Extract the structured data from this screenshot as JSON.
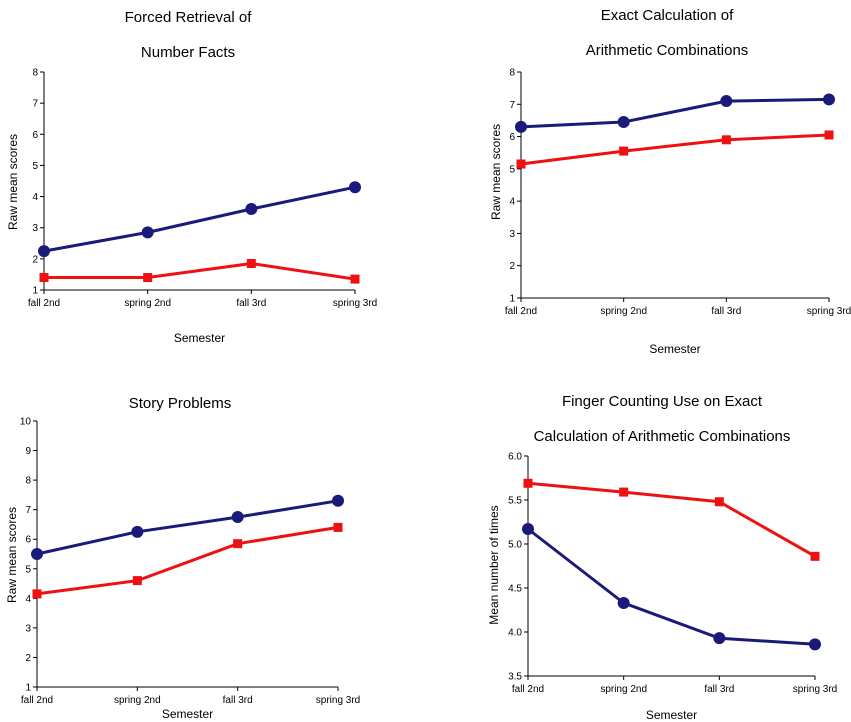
{
  "chart_data": [
    {
      "type": "line",
      "title_lines": [
        "Forced Retrieval of",
        "Number Facts"
      ],
      "xlabel": "Semester",
      "ylabel": "Raw mean scores",
      "categories": [
        "fall 2nd",
        "spring 2nd",
        "fall 3rd",
        "spring 3rd"
      ],
      "ylim": [
        1,
        8
      ],
      "yticks": [
        "1",
        "2",
        "3",
        "4",
        "5",
        "6",
        "7",
        "8"
      ],
      "grid": false,
      "series": [
        {
          "color": "#1a1a7a",
          "marker": "circle",
          "values": [
            2.25,
            2.85,
            3.6,
            4.3
          ]
        },
        {
          "color": "#ee1111",
          "marker": "square",
          "values": [
            1.4,
            1.4,
            1.85,
            1.35
          ]
        }
      ]
    },
    {
      "type": "line",
      "title_lines": [
        "Exact Calculation of",
        "Arithmetic Combinations"
      ],
      "xlabel": "Semester",
      "ylabel": "Raw mean scores",
      "categories": [
        "fall 2nd",
        "spring 2nd",
        "fall 3rd",
        "spring 3rd"
      ],
      "ylim": [
        1,
        8
      ],
      "yticks": [
        "1",
        "2",
        "3",
        "4",
        "5",
        "6",
        "7",
        "8"
      ],
      "grid": false,
      "series": [
        {
          "color": "#1a1a7a",
          "marker": "circle",
          "values": [
            6.3,
            6.45,
            7.1,
            7.15
          ]
        },
        {
          "color": "#ee1111",
          "marker": "square",
          "values": [
            5.15,
            5.55,
            5.9,
            6.05
          ]
        }
      ]
    },
    {
      "type": "line",
      "title_lines": [
        "Story Problems"
      ],
      "xlabel": "Semester",
      "ylabel": "Raw mean scores",
      "categories": [
        "fall 2nd",
        "spring 2nd",
        "fall 3rd",
        "spring 3rd"
      ],
      "ylim": [
        1,
        10
      ],
      "yticks": [
        "1",
        "2",
        "3",
        "4",
        "5",
        "6",
        "7",
        "8",
        "9",
        "10"
      ],
      "grid": false,
      "series": [
        {
          "color": "#1a1a7a",
          "marker": "circle",
          "values": [
            5.5,
            6.25,
            6.75,
            7.3
          ]
        },
        {
          "color": "#ee1111",
          "marker": "square",
          "values": [
            4.15,
            4.6,
            5.85,
            6.4
          ]
        }
      ]
    },
    {
      "type": "line",
      "title_lines": [
        "Finger Counting Use on Exact",
        "Calculation of Arithmetic Combinations"
      ],
      "xlabel": "Semester",
      "ylabel": "Mean number of times",
      "categories": [
        "fall 2nd",
        "spring 2nd",
        "fall 3rd",
        "spring 3rd"
      ],
      "ylim": [
        3.5,
        6.0
      ],
      "yticks": [
        "3.5",
        "4.0",
        "4.5",
        "5.0",
        "5.5",
        "6.0"
      ],
      "grid": false,
      "series": [
        {
          "color": "#1a1a7a",
          "marker": "circle",
          "values": [
            5.17,
            4.33,
            3.93,
            3.86
          ]
        },
        {
          "color": "#ee1111",
          "marker": "square",
          "values": [
            5.69,
            5.59,
            5.48,
            4.86
          ]
        }
      ]
    }
  ]
}
